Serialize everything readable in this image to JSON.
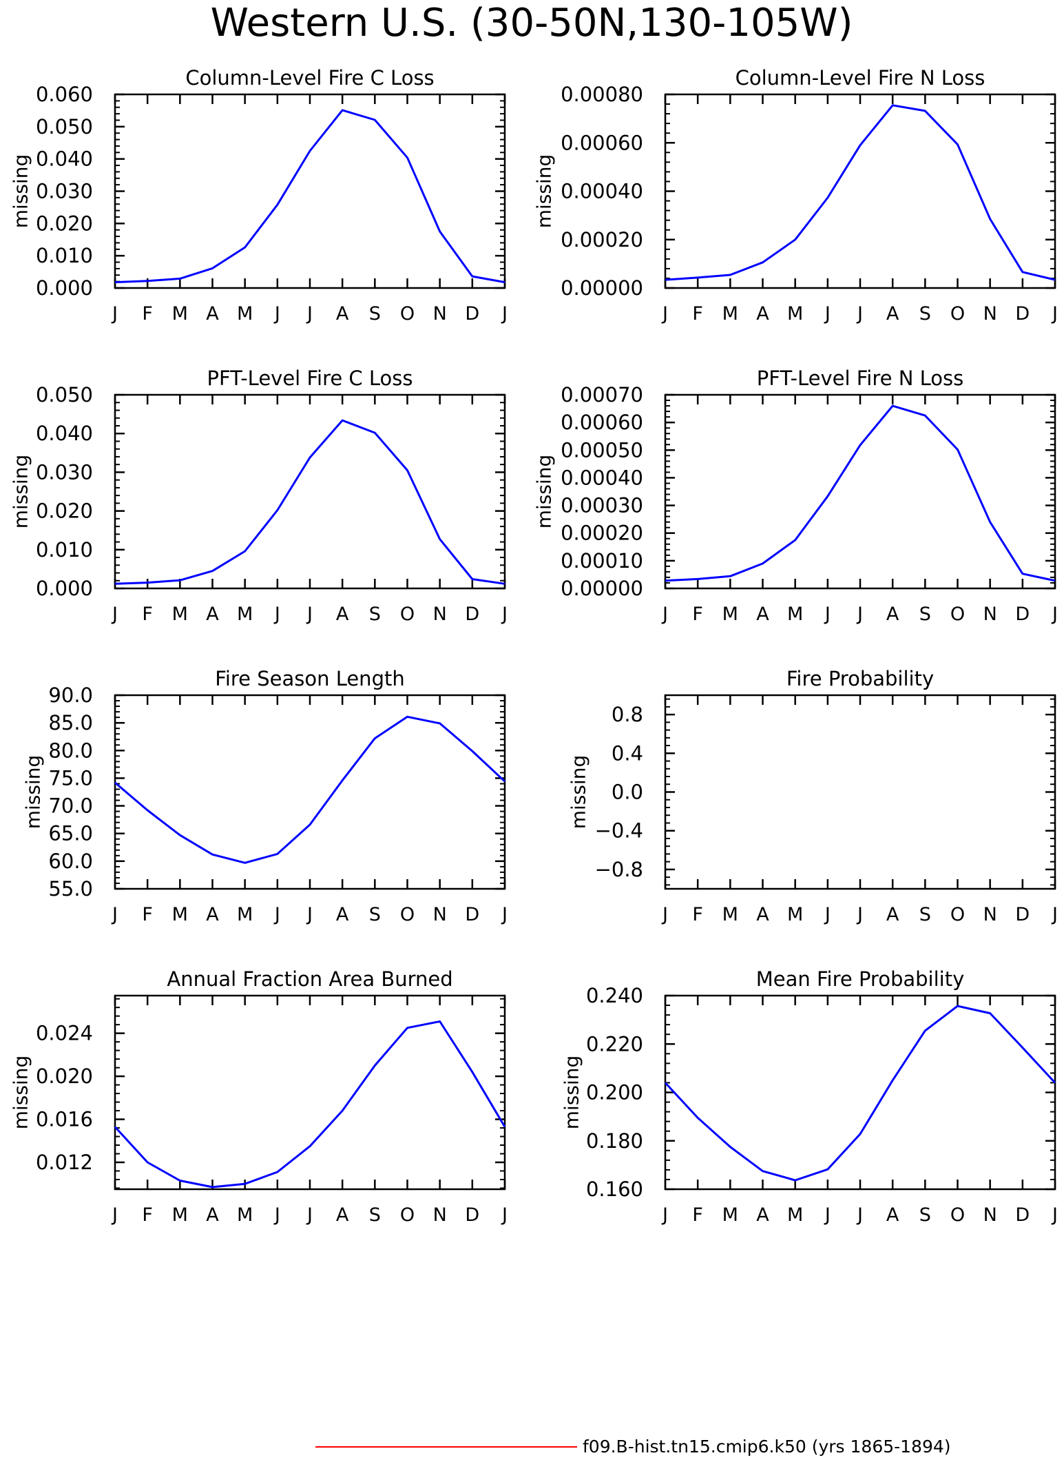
{
  "figure": {
    "title": "Western U.S. (30-50N,130-105W)",
    "legend": {
      "label": "f09.B-hist.tn15.cmip6.k50 (yrs 1865-1894)",
      "color": "#ff0000"
    },
    "series_color": "#0000ff"
  },
  "chart_data": [
    {
      "type": "line",
      "title": "Column-Level Fire C Loss",
      "ylabel": "missing",
      "x": [
        "J",
        "F",
        "M",
        "A",
        "M",
        "J",
        "J",
        "A",
        "S",
        "O",
        "N",
        "D",
        "J"
      ],
      "ylim": [
        0,
        0.06
      ],
      "yticks": [
        0,
        0.01,
        0.02,
        0.03,
        0.04,
        0.05,
        0.06
      ],
      "ytick_labels": [
        "0.000",
        "0.010",
        "0.020",
        "0.030",
        "0.040",
        "0.050",
        "0.060"
      ],
      "series": [
        {
          "values": [
            0.0018,
            0.0022,
            0.0029,
            0.0061,
            0.0126,
            0.0258,
            0.0425,
            0.0551,
            0.0521,
            0.0404,
            0.0175,
            0.0036,
            0.0018
          ]
        }
      ]
    },
    {
      "type": "line",
      "title": "Column-Level Fire N Loss",
      "ylabel": "missing",
      "x": [
        "J",
        "F",
        "M",
        "A",
        "M",
        "J",
        "J",
        "A",
        "S",
        "O",
        "N",
        "D",
        "J"
      ],
      "ylim": [
        0,
        0.0008
      ],
      "yticks": [
        0,
        0.0002,
        0.0004,
        0.0006,
        0.0008
      ],
      "ytick_labels": [
        "0.00000",
        "0.00020",
        "0.00040",
        "0.00060",
        "0.00080"
      ],
      "series": [
        {
          "values": [
            3.4e-05,
            4.3e-05,
            5.4e-05,
            0.000106,
            0.0002,
            0.000373,
            0.00059,
            0.000755,
            0.000732,
            0.000593,
            0.000285,
            6.6e-05,
            3.4e-05
          ]
        }
      ]
    },
    {
      "type": "line",
      "title": "PFT-Level Fire C Loss",
      "ylabel": "missing",
      "x": [
        "J",
        "F",
        "M",
        "A",
        "M",
        "J",
        "J",
        "A",
        "S",
        "O",
        "N",
        "D",
        "J"
      ],
      "ylim": [
        0,
        0.05
      ],
      "yticks": [
        0,
        0.01,
        0.02,
        0.03,
        0.04,
        0.05
      ],
      "ytick_labels": [
        "0.000",
        "0.010",
        "0.020",
        "0.030",
        "0.040",
        "0.050"
      ],
      "series": [
        {
          "values": [
            0.0012,
            0.0015,
            0.0021,
            0.0045,
            0.0096,
            0.0202,
            0.0338,
            0.0434,
            0.0402,
            0.0305,
            0.0127,
            0.0024,
            0.0012
          ]
        }
      ]
    },
    {
      "type": "line",
      "title": "PFT-Level Fire N Loss",
      "ylabel": "missing",
      "x": [
        "J",
        "F",
        "M",
        "A",
        "M",
        "J",
        "J",
        "A",
        "S",
        "O",
        "N",
        "D",
        "J"
      ],
      "ylim": [
        0,
        0.0007
      ],
      "yticks": [
        0,
        0.0001,
        0.0002,
        0.0003,
        0.0004,
        0.0005,
        0.0006,
        0.0007
      ],
      "ytick_labels": [
        "0.00000",
        "0.00010",
        "0.00020",
        "0.00030",
        "0.00040",
        "0.00050",
        "0.00060",
        "0.00070"
      ],
      "series": [
        {
          "values": [
            2.8e-05,
            3.4e-05,
            4.4e-05,
            9e-05,
            0.000175,
            0.000333,
            0.000518,
            0.00066,
            0.000625,
            0.000502,
            0.00024,
            5.3e-05,
            2.8e-05
          ]
        }
      ]
    },
    {
      "type": "line",
      "title": "Fire Season Length",
      "ylabel": "missing",
      "x": [
        "J",
        "F",
        "M",
        "A",
        "M",
        "J",
        "J",
        "A",
        "S",
        "O",
        "N",
        "D",
        "J"
      ],
      "ylim": [
        55,
        90
      ],
      "yticks": [
        55,
        60,
        65,
        70,
        75,
        80,
        85,
        90
      ],
      "ytick_labels": [
        "55.0",
        "60.0",
        "65.0",
        "70.0",
        "75.0",
        "80.0",
        "85.0",
        "90.0"
      ],
      "series": [
        {
          "values": [
            74.2,
            69.2,
            64.7,
            61.2,
            59.7,
            61.3,
            66.6,
            74.6,
            82.2,
            86.1,
            84.9,
            79.9,
            74.4
          ]
        }
      ]
    },
    {
      "type": "line",
      "title": "Fire Probability",
      "ylabel": "missing",
      "x": [
        "J",
        "F",
        "M",
        "A",
        "M",
        "J",
        "J",
        "A",
        "S",
        "O",
        "N",
        "D",
        "J"
      ],
      "ylim": [
        -1,
        1
      ],
      "yticks": [
        -0.8,
        -0.4,
        0.0,
        0.4,
        0.8
      ],
      "ytick_labels": [
        "−0.8",
        "−0.4",
        "0.0",
        "0.4",
        "0.8"
      ],
      "series": []
    },
    {
      "type": "line",
      "title": "Annual Fraction Area Burned",
      "ylabel": "missing",
      "x": [
        "J",
        "F",
        "M",
        "A",
        "M",
        "J",
        "J",
        "A",
        "S",
        "O",
        "N",
        "D",
        "J"
      ],
      "ylim": [
        0.0095,
        0.0275
      ],
      "yticks": [
        0.012,
        0.016,
        0.02,
        0.024
      ],
      "ytick_labels": [
        "0.012",
        "0.016",
        "0.020",
        "0.024"
      ],
      "series": [
        {
          "values": [
            0.0153,
            0.012,
            0.0103,
            0.0097,
            0.01,
            0.0111,
            0.0135,
            0.0168,
            0.021,
            0.0245,
            0.0251,
            0.0204,
            0.0153
          ]
        }
      ]
    },
    {
      "type": "line",
      "title": "Mean Fire Probability",
      "ylabel": "missing",
      "x": [
        "J",
        "F",
        "M",
        "A",
        "M",
        "J",
        "J",
        "A",
        "S",
        "O",
        "N",
        "D",
        "J"
      ],
      "ylim": [
        0.16,
        0.24
      ],
      "yticks": [
        0.16,
        0.18,
        0.2,
        0.22,
        0.24
      ],
      "ytick_labels": [
        "0.160",
        "0.180",
        "0.200",
        "0.220",
        "0.240"
      ],
      "series": [
        {
          "values": [
            0.204,
            0.1895,
            0.1775,
            0.1675,
            0.1637,
            0.1682,
            0.1828,
            0.205,
            0.2255,
            0.2357,
            0.2327,
            0.2185,
            0.204
          ]
        }
      ]
    }
  ]
}
